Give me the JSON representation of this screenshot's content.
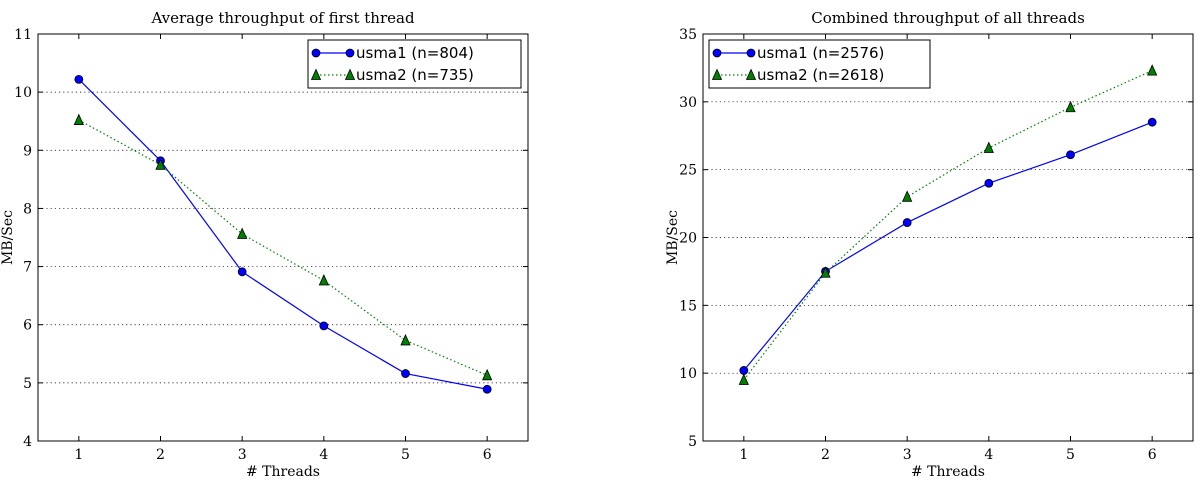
{
  "chart_data": [
    {
      "type": "line",
      "title": "Average throughput of first thread",
      "xlabel": "# Threads",
      "ylabel": "MB/Sec",
      "xlim": [
        0.5,
        6.5
      ],
      "ylim": [
        4,
        11
      ],
      "xticks": [
        "1",
        "2",
        "3",
        "4",
        "5",
        "6"
      ],
      "yticks": [
        "4",
        "5",
        "6",
        "7",
        "8",
        "9",
        "10",
        "11"
      ],
      "grid": "horizontal dotted",
      "legend_placement": "top-right",
      "x": [
        1,
        2,
        3,
        4,
        5,
        6
      ],
      "series": [
        {
          "name": "usma1 (n=804)",
          "values": [
            10.22,
            8.82,
            6.91,
            5.98,
            5.16,
            4.89
          ],
          "color": "#0000ff",
          "marker": "circle",
          "linestyle": "solid"
        },
        {
          "name": "usma2 (n=735)",
          "values": [
            9.52,
            8.75,
            7.56,
            6.76,
            5.73,
            5.13
          ],
          "color": "#008000",
          "marker": "triangle",
          "linestyle": "dotted"
        }
      ]
    },
    {
      "type": "line",
      "title": "Combined throughput of all threads",
      "xlabel": "# Threads",
      "ylabel": "MB/Sec",
      "xlim": [
        0.5,
        6.5
      ],
      "ylim": [
        5,
        35
      ],
      "xticks": [
        "1",
        "2",
        "3",
        "4",
        "5",
        "6"
      ],
      "yticks": [
        "5",
        "10",
        "15",
        "20",
        "25",
        "30",
        "35"
      ],
      "grid": "horizontal dotted",
      "legend_placement": "top-left",
      "x": [
        1,
        2,
        3,
        4,
        5,
        6
      ],
      "series": [
        {
          "name": "usma1 (n=2576)",
          "values": [
            10.2,
            17.5,
            21.1,
            24.0,
            26.1,
            28.5
          ],
          "color": "#0000ff",
          "marker": "circle",
          "linestyle": "solid"
        },
        {
          "name": "usma2 (n=2618)",
          "values": [
            9.5,
            17.4,
            23.0,
            26.6,
            29.6,
            32.3
          ],
          "color": "#008000",
          "marker": "triangle",
          "linestyle": "dotted"
        }
      ]
    }
  ]
}
